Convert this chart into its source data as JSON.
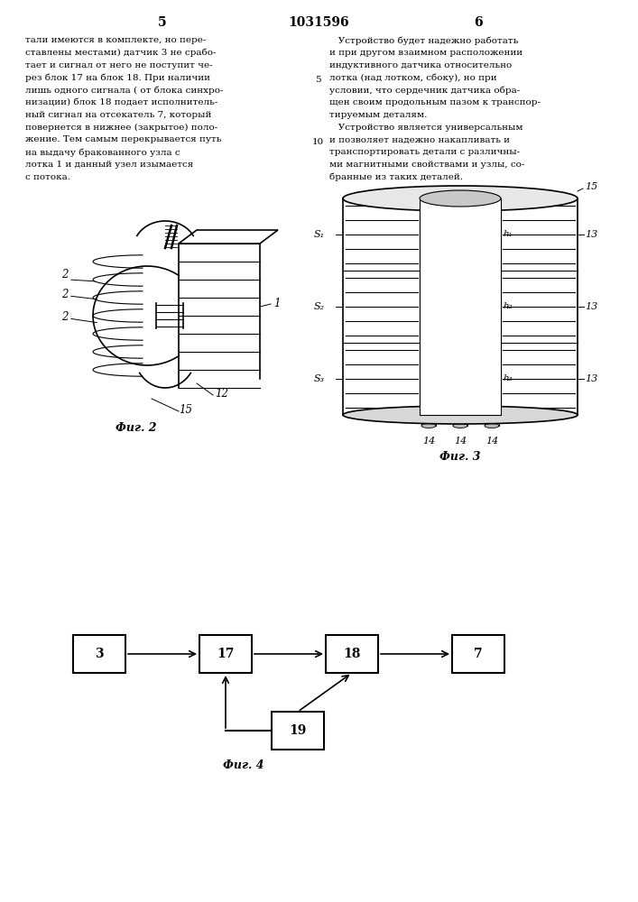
{
  "page_number_left": "5",
  "page_number_center": "1031596",
  "page_number_right": "6",
  "left_text_lines": [
    "тали имеются в комплекте, но пере-",
    "ставлены местами) датчик 3 не срабо-",
    "тает и сигнал от него не поступит че-",
    "рез блок 17 на блок 18. При наличии",
    "лишь одного сигнала ( от блока синхро-",
    "низации) блок 18 подает исполнитель-",
    "ный сигнал на отсекатель 7, который",
    "повернется в нижнее (закрытое) поло-",
    "жение. Тем самым перекрывается путь",
    "на выдачу бракованного узла с",
    "лотка 1 и данный узел изымается",
    "с потока."
  ],
  "right_text_lines": [
    "   Устройство будет надежно работать",
    "и при другом взаимном расположении",
    "индуктивного датчика относительно",
    "лотка (над лотком, сбоку), но при",
    "условии, что сердечник датчика обра-",
    "щен своим продольным пазом к транспор-",
    "тируемым деталям.",
    "   Устройство является универсальным",
    "и позволяет надежно накапливать и",
    "транспортировать детали с различны-",
    "ми магнитными свойствами и узлы, со-",
    "бранные из таких деталей."
  ],
  "line_numbers": [
    "5",
    "10"
  ],
  "fig2_label": "Фиг. 2",
  "fig3_label": "Фиг. 3",
  "fig4_label": "Фиг. 4",
  "background_color": "#ffffff"
}
